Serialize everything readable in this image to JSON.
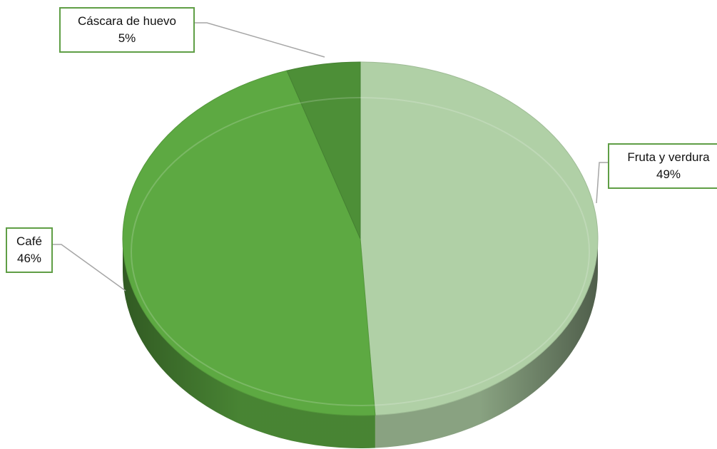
{
  "chart_data": {
    "type": "pie",
    "title": "",
    "categories": [
      "Fruta y verdura",
      "Café",
      "Cáscara de huevo"
    ],
    "values": [
      49,
      46,
      5
    ],
    "labels": [
      "49%",
      "46%",
      "5%"
    ],
    "colors": [
      "#b0d0a6",
      "#5da942",
      "#4d8f37"
    ],
    "legend": "none",
    "style": "3d"
  }
}
